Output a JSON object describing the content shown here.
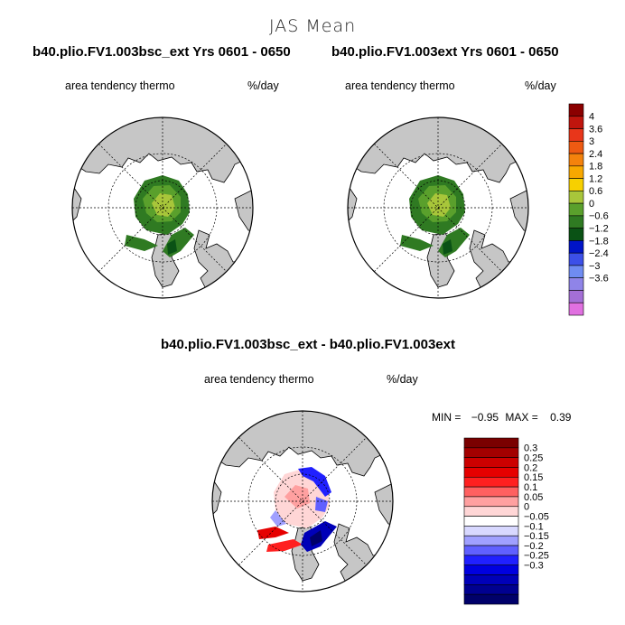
{
  "page": {
    "main_title": "JAS Mean"
  },
  "panels": [
    {
      "title": "b40.plio.FV1.003bsc_ext  Yrs 0601 - 0650",
      "variable": "area tendency thermo",
      "units": "%/day"
    },
    {
      "title": "b40.plio.FV1.003ext  Yrs 0601 - 0650",
      "variable": "area tendency thermo",
      "units": "%/day"
    },
    {
      "title": "b40.plio.FV1.003bsc_ext - b40.plio.FV1.003ext",
      "variable": "area tendency thermo",
      "units": "%/day",
      "min_label": "MIN =",
      "min_value": "−0.95",
      "max_label": "MAX =",
      "max_value": "0.39"
    }
  ],
  "chart_data": [
    {
      "type": "heatmap",
      "projection": "north polar stereographic",
      "title": "b40.plio.FV1.003bsc_ext  Yrs 0601 - 0650",
      "colorbar": {
        "tick_labels": [
          "4",
          "3.6",
          "3",
          "2.4",
          "1.8",
          "1.2",
          "0.6",
          "0",
          "−0.6",
          "−1.2",
          "−1.8",
          "−2.4",
          "−3",
          "−3.6"
        ],
        "colors": [
          "#8b0000",
          "#c0150d",
          "#e8361a",
          "#ee5a12",
          "#f4820c",
          "#f8a800",
          "#f7d000",
          "#a8c63a",
          "#5aa02c",
          "#2f7a22",
          "#0a5215",
          "#0014c8",
          "#3c50e8",
          "#6f8cf2",
          "#8f84e8",
          "#a46fd6",
          "#e070e0"
        ]
      }
    },
    {
      "type": "heatmap",
      "projection": "north polar stereographic",
      "title": "b40.plio.FV1.003ext  Yrs 0601 - 0650"
    },
    {
      "type": "heatmap",
      "projection": "north polar stereographic",
      "title": "b40.plio.FV1.003bsc_ext - b40.plio.FV1.003ext",
      "min": -0.95,
      "max": 0.39,
      "colorbar": {
        "tick_labels": [
          "0.3",
          "0.25",
          "0.2",
          "0.15",
          "0.1",
          "0.05",
          "0",
          "−0.05",
          "−0.1",
          "−0.15",
          "−0.2",
          "−0.25",
          "−0.3"
        ],
        "colors": [
          "#7a0000",
          "#a30000",
          "#cc0000",
          "#e60000",
          "#ff2020",
          "#ff6060",
          "#ffa0a0",
          "#ffd6d6",
          "#ffffff",
          "#d8d8ff",
          "#a0a0ff",
          "#6060ff",
          "#2020ff",
          "#0000e0",
          "#0000b8",
          "#000090",
          "#00006a"
        ]
      }
    }
  ]
}
